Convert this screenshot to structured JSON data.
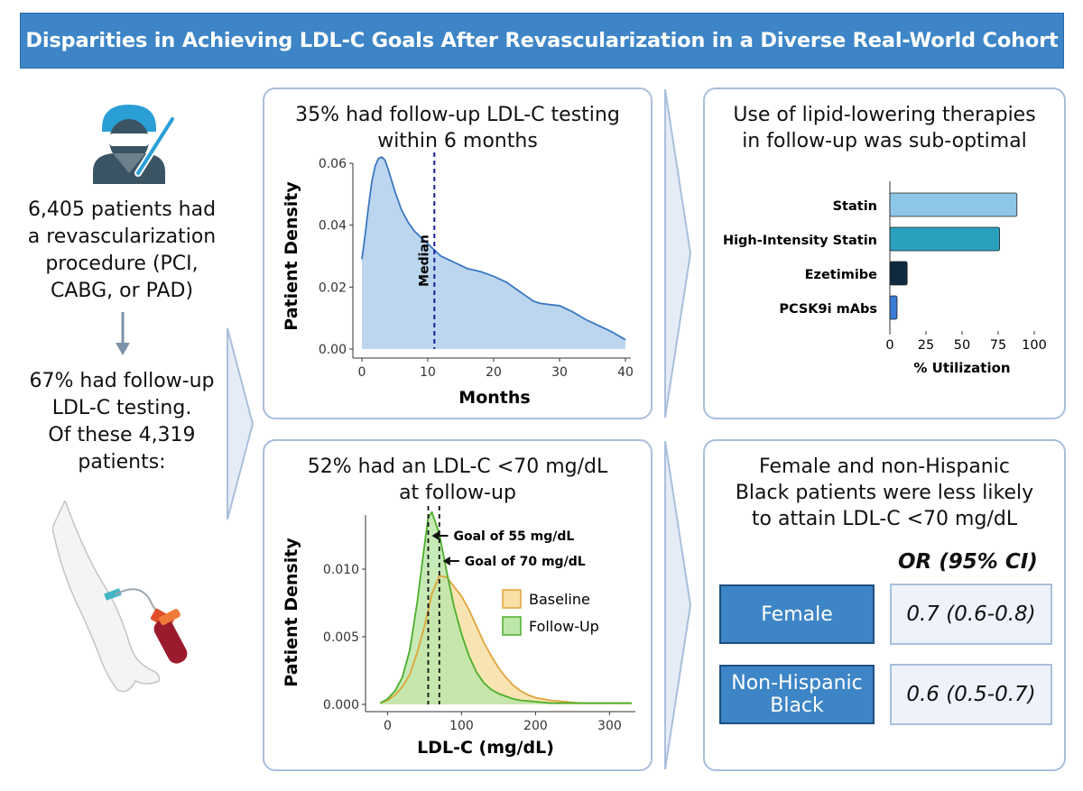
{
  "header": {
    "title": "Disparities in Achieving LDL-C Goals After Revascularization in a Diverse Real-World Cohort"
  },
  "colors": {
    "accent": "#3d85c6",
    "panel_border": "#a9bfdc",
    "density_fill": "#bcd6ef",
    "density_line": "#3a78c0",
    "baseline_fill": "#f7dfa6",
    "followup_fill": "#bde6aa"
  },
  "left": {
    "text1": [
      "6,405 patients had",
      "a revascularization",
      "procedure (PCI,",
      "CABG, or PAD)"
    ],
    "text2": [
      "67% had follow-up",
      "LDL-C testing.",
      "Of these 4,319",
      "patients:"
    ],
    "icons": [
      "surgeon-icon",
      "down-arrow-icon",
      "arm-blood-draw-icon"
    ]
  },
  "panel1": {
    "title_line1": "35% had follow-up LDL-C testing",
    "title_line2": "within 6 months"
  },
  "panel2": {
    "title_line1": "52% had an LDL-C <70 mg/dL",
    "title_line2": "at follow-up"
  },
  "panel3": {
    "title_line1": "Use of lipid-lowering therapies",
    "title_line2": "in follow-up was sub-optimal"
  },
  "panel4": {
    "title_line1": "Female and non-Hispanic",
    "title_line2": "Black patients were less likely",
    "title_line3": "to attain LDL-C <70 mg/dL",
    "or_header": "OR (95% CI)",
    "rows": [
      {
        "label_lines": [
          "Female"
        ],
        "value": "0.7 (0.6-0.8)"
      },
      {
        "label_lines": [
          "Non-Hispanic",
          "Black"
        ],
        "value": "0.6 (0.5-0.7)"
      }
    ]
  },
  "chart_data": [
    {
      "type": "area",
      "title": "35% had follow-up LDL-C testing within 6 months",
      "xlabel": "Months",
      "ylabel": "Patient Density",
      "xlim": [
        0,
        40
      ],
      "ylim": [
        0,
        0.06
      ],
      "x_ticks": [
        0,
        10,
        20,
        30,
        40
      ],
      "y_ticks": [
        0.0,
        0.02,
        0.04,
        0.06
      ],
      "y_tick_labels": [
        "0.00",
        "0.02",
        "0.04",
        "0.06"
      ],
      "series": [
        {
          "name": "Patient Density",
          "x": [
            0,
            0.5,
            1,
            1.5,
            2,
            2.5,
            3,
            3.5,
            4,
            5,
            6,
            7,
            8,
            9,
            10,
            11,
            12,
            14,
            16,
            18,
            20,
            22,
            24,
            26,
            27,
            28,
            30,
            32,
            34,
            36,
            38,
            40
          ],
          "values": [
            0.029,
            0.037,
            0.046,
            0.054,
            0.059,
            0.0615,
            0.062,
            0.061,
            0.058,
            0.051,
            0.045,
            0.041,
            0.038,
            0.036,
            0.034,
            0.032,
            0.03,
            0.028,
            0.026,
            0.025,
            0.0235,
            0.0215,
            0.0185,
            0.0155,
            0.0148,
            0.0145,
            0.014,
            0.012,
            0.0095,
            0.0075,
            0.0055,
            0.003
          ]
        }
      ],
      "annotations": [
        {
          "label": "Median",
          "x": 11
        }
      ]
    },
    {
      "type": "area",
      "title": "52% had an LDL-C <70 mg/dL at follow-up",
      "xlabel": "LDL-C (mg/dL)",
      "ylabel": "Patient Density",
      "xlim": [
        -20,
        330
      ],
      "ylim": [
        0,
        0.014
      ],
      "x_ticks": [
        0,
        100,
        200,
        300
      ],
      "y_ticks": [
        0.0,
        0.005,
        0.01
      ],
      "y_tick_labels": [
        "0.000",
        "0.005",
        "0.010"
      ],
      "series": [
        {
          "name": "Baseline",
          "x": [
            -10,
            0,
            10,
            20,
            30,
            40,
            50,
            60,
            70,
            80,
            90,
            100,
            110,
            120,
            130,
            140,
            150,
            160,
            170,
            180,
            190,
            200,
            220,
            240,
            260,
            280,
            300,
            330
          ],
          "values": [
            0.0001,
            0.0003,
            0.0007,
            0.0013,
            0.0022,
            0.0038,
            0.0058,
            0.0082,
            0.0095,
            0.0094,
            0.0087,
            0.008,
            0.007,
            0.0058,
            0.0046,
            0.0036,
            0.0027,
            0.002,
            0.0014,
            0.001,
            0.0007,
            0.0005,
            0.0003,
            0.0002,
            0.0001,
            0.0001,
            0.0001,
            0.0001
          ]
        },
        {
          "name": "Follow-Up",
          "x": [
            -10,
            0,
            10,
            20,
            30,
            40,
            50,
            55,
            60,
            70,
            80,
            90,
            100,
            110,
            120,
            130,
            140,
            150,
            160,
            170,
            180,
            200,
            220,
            240,
            260,
            300,
            330
          ],
          "values": [
            0.0001,
            0.0004,
            0.001,
            0.002,
            0.004,
            0.0075,
            0.0118,
            0.0138,
            0.0142,
            0.0126,
            0.0098,
            0.0072,
            0.0052,
            0.0036,
            0.0024,
            0.0016,
            0.0011,
            0.0008,
            0.0006,
            0.0004,
            0.0003,
            0.0002,
            0.0001,
            0.0001,
            0.0001,
            0.0001,
            0.0001
          ]
        }
      ],
      "legend": [
        "Baseline",
        "Follow-Up"
      ],
      "annotations": [
        {
          "label": "Goal of 55 mg/dL",
          "x": 55
        },
        {
          "label": "Goal of 70 mg/dL",
          "x": 70
        }
      ]
    },
    {
      "type": "bar",
      "title": "Use of lipid-lowering therapies in follow-up was sub-optimal",
      "xlabel": "% Utilization",
      "ylabel": "",
      "xlim": [
        0,
        100
      ],
      "x_ticks": [
        0,
        25,
        50,
        75,
        100
      ],
      "categories": [
        "Statin",
        "High-Intensity Statin",
        "Ezetimibe",
        "PCSK9i mAbs"
      ],
      "values": [
        88,
        76,
        12,
        5
      ],
      "colors": [
        "#8ec6e8",
        "#2aa0bf",
        "#0f2a3f",
        "#3a7bd5"
      ]
    }
  ]
}
